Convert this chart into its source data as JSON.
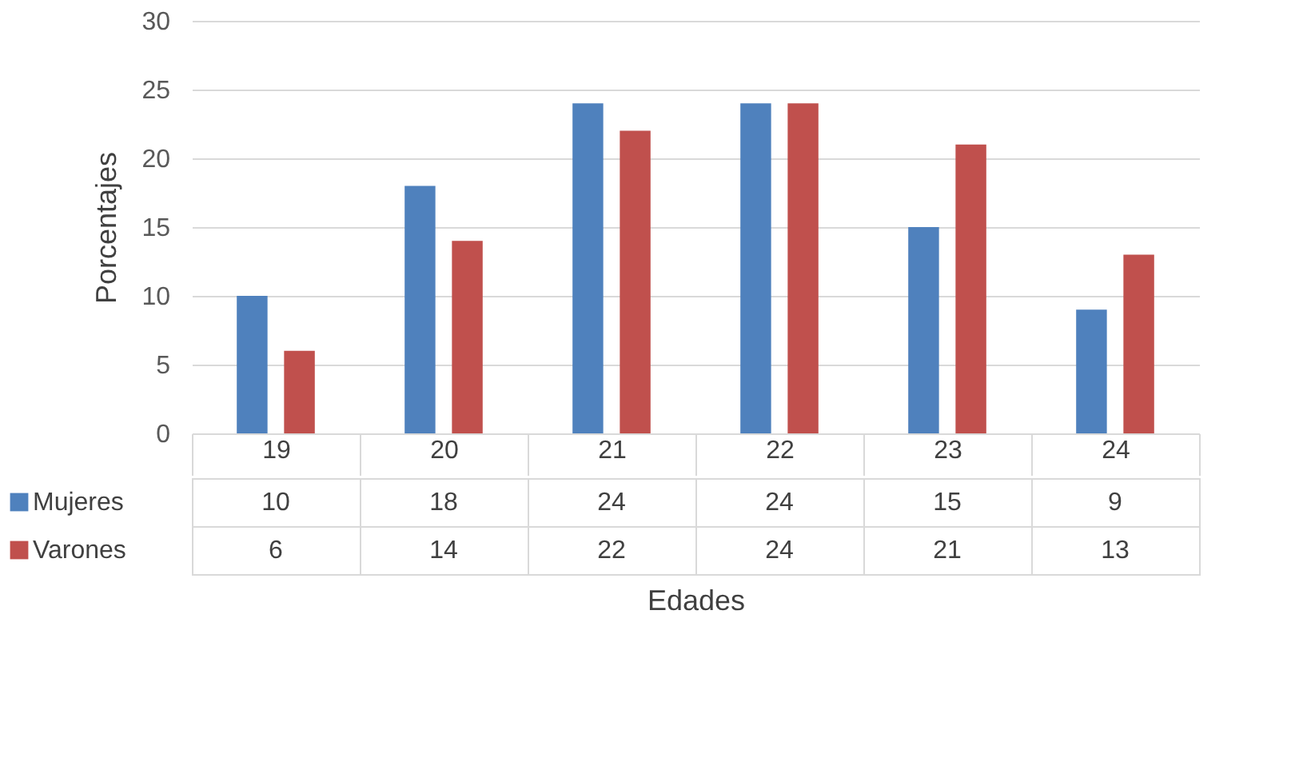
{
  "chart_data": {
    "type": "bar",
    "xlabel": "Edades",
    "ylabel": "Porcentajes",
    "categories": [
      "19",
      "20",
      "21",
      "22",
      "23",
      "24"
    ],
    "series": [
      {
        "name": "Mujeres",
        "color": "#4f81bd",
        "values": [
          10,
          18,
          24,
          24,
          15,
          9
        ]
      },
      {
        "name": "Varones",
        "color": "#c0504d",
        "values": [
          6,
          14,
          22,
          24,
          21,
          13
        ]
      }
    ],
    "ylim": [
      0,
      30
    ],
    "yticks": [
      0,
      5,
      10,
      15,
      20,
      25,
      30
    ],
    "grid": "y",
    "data_labels": true,
    "legend": "bottom left"
  }
}
